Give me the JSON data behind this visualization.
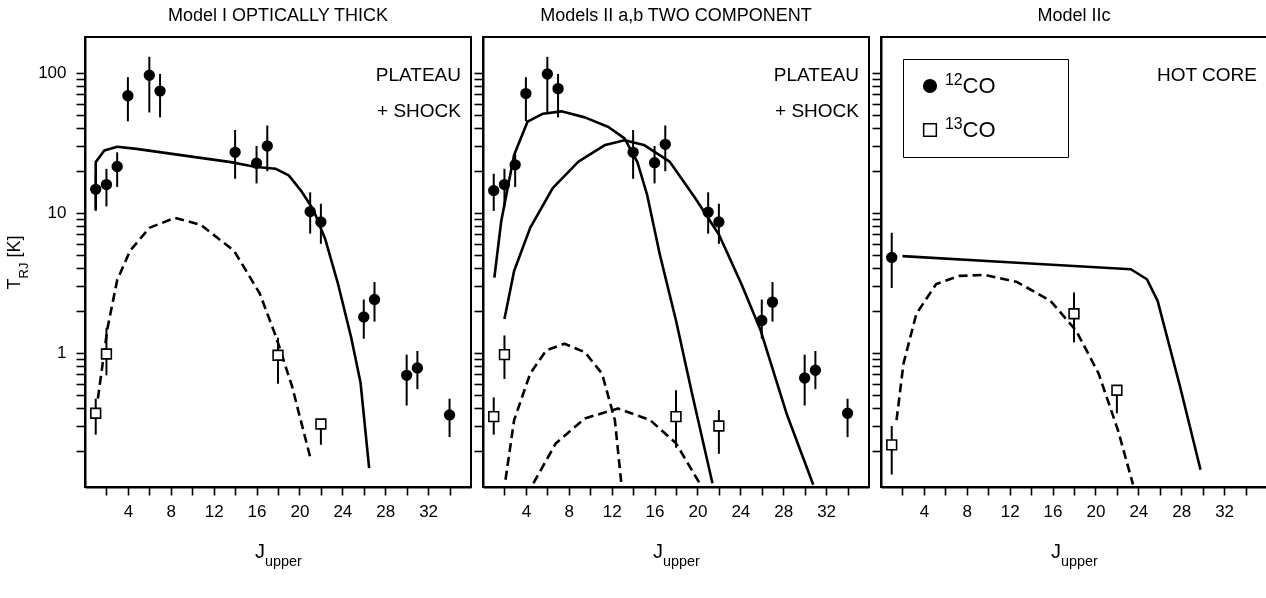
{
  "chart_data": [
    {
      "type": "scatter",
      "title": "Model I   OPTICALLY THICK",
      "xlabel": "J$_{upper}$",
      "ylabel": "T$_{RJ}$ [K]",
      "log": "y",
      "legend": false,
      "annotations": [
        "PLATEAU",
        "+ SHOCK"
      ],
      "xlim": [
        0,
        36
      ],
      "xticks": [
        {
          "value": 2,
          "label": null
        },
        4,
        {
          "value": 6,
          "label": null
        },
        8,
        {
          "value": 10,
          "label": null
        },
        12,
        {
          "value": 14,
          "label": null
        },
        16,
        {
          "value": 18,
          "label": null
        },
        20,
        {
          "value": 22,
          "label": null
        },
        24,
        {
          "value": 26,
          "label": null
        },
        28,
        {
          "value": 30,
          "label": null
        },
        32,
        {
          "value": 34,
          "label": null
        }
      ],
      "ylim": [
        0.11,
        180
      ],
      "yticks": [
        {
          "value": 0.2,
          "label": null
        },
        {
          "value": 0.3,
          "label": null
        },
        {
          "value": 0.4,
          "label": null
        },
        {
          "value": 0.5,
          "label": null
        },
        {
          "value": 0.6,
          "label": null
        },
        {
          "value": 0.7,
          "label": null
        },
        {
          "value": 0.8,
          "label": null
        },
        {
          "value": 0.9,
          "label": null
        },
        1,
        {
          "value": 2,
          "label": null
        },
        {
          "value": 3,
          "label": null
        },
        {
          "value": 4,
          "label": null
        },
        {
          "value": 5,
          "label": null
        },
        {
          "value": 6,
          "label": null
        },
        {
          "value": 7,
          "label": null
        },
        {
          "value": 8,
          "label": null
        },
        {
          "value": 9,
          "label": null
        },
        10,
        {
          "value": 20,
          "label": null
        },
        {
          "value": 30,
          "label": null
        },
        {
          "value": 40,
          "label": null
        },
        {
          "value": 50,
          "label": null
        },
        {
          "value": 60,
          "label": null
        },
        {
          "value": 70,
          "label": null
        },
        {
          "value": 80,
          "label": null
        },
        {
          "value": 90,
          "label": null
        },
        100
      ],
      "series": [
        {
          "type": "line",
          "color": "#000000",
          "line_style": "solid",
          "x": [
            1,
            1,
            1.8,
            3,
            4.8,
            13.6,
            16,
            17.8,
            19,
            20.2,
            21.3,
            22.4,
            23.6,
            24.8,
            25.7,
            26.5
          ],
          "values": [
            10.5,
            23,
            27.8,
            29.6,
            28.6,
            23,
            21.2,
            20.6,
            18.5,
            14.2,
            10.5,
            6.5,
            3.1,
            1.31,
            0.61,
            0.15
          ]
        },
        {
          "type": "line",
          "color": "#000000",
          "line_style": "dashed",
          "x": [
            1.2,
            2.1,
            3,
            4.2,
            6,
            8.4,
            10.8,
            13.9,
            16.3,
            17.8,
            19.3,
            21
          ],
          "values": [
            0.47,
            1.5,
            3.3,
            5.35,
            7.8,
            9.2,
            8.2,
            5.35,
            2.65,
            1.31,
            0.58,
            0.18
          ]
        },
        {
          "type": "scatter",
          "color": "#000000",
          "marker": "circle",
          "x": [
            1,
            2,
            3,
            4,
            6,
            7,
            14,
            16,
            17,
            21,
            22,
            26,
            27,
            30,
            31,
            34
          ],
          "values": [
            14.7,
            15.9,
            21.4,
            68.5,
            96,
            74,
            27,
            22.6,
            30,
            10.2,
            8.6,
            1.8,
            2.4,
            0.69,
            0.78,
            0.36
          ],
          "errors": [
            [
              10.3,
              19
            ],
            [
              11.1,
              20.6
            ],
            [
              15.3,
              27
            ],
            [
              45,
              93
            ],
            [
              52,
              130
            ],
            [
              48,
              98
            ],
            [
              17.5,
              39
            ],
            [
              16.2,
              30
            ],
            [
              19.8,
              42
            ],
            [
              7.1,
              14
            ],
            [
              6.0,
              11.6
            ],
            [
              1.26,
              2.4
            ],
            [
              1.67,
              3.2
            ],
            [
              0.42,
              0.97
            ],
            [
              0.55,
              1.03
            ],
            [
              0.25,
              0.47
            ]
          ]
        },
        {
          "type": "scatter",
          "color": "#000000",
          "marker": "square",
          "x": [
            1,
            2,
            18,
            22
          ],
          "values": [
            0.37,
            0.98,
            0.96,
            0.31
          ],
          "errors": [
            [
              0.26,
              0.47
            ],
            [
              0.69,
              1.5
            ],
            [
              0.6,
              1.28
            ],
            [
              0.22,
              0.31
            ]
          ]
        }
      ]
    },
    {
      "type": "scatter",
      "title": "Models II a,b   TWO COMPONENT",
      "xlabel": "J$_{upper}$",
      "log": "y",
      "legend": false,
      "tick_labels": "x",
      "annotations": [
        "PLATEAU",
        "+ SHOCK"
      ],
      "xlim": [
        0,
        36
      ],
      "xticks": [
        {
          "value": 2,
          "label": null
        },
        4,
        {
          "value": 6,
          "label": null
        },
        8,
        {
          "value": 10,
          "label": null
        },
        12,
        {
          "value": 14,
          "label": null
        },
        16,
        {
          "value": 18,
          "label": null
        },
        20,
        {
          "value": 22,
          "label": null
        },
        24,
        {
          "value": 26,
          "label": null
        },
        28,
        {
          "value": 30,
          "label": null
        },
        32,
        {
          "value": 34,
          "label": null
        }
      ],
      "ylim": [
        0.11,
        180
      ],
      "yticks": [
        {
          "value": 0.2,
          "label": null
        },
        {
          "value": 0.3,
          "label": null
        },
        {
          "value": 0.4,
          "label": null
        },
        {
          "value": 0.5,
          "label": null
        },
        {
          "value": 0.6,
          "label": null
        },
        {
          "value": 0.7,
          "label": null
        },
        {
          "value": 0.8,
          "label": null
        },
        {
          "value": 0.9,
          "label": null
        },
        1,
        {
          "value": 2,
          "label": null
        },
        {
          "value": 3,
          "label": null
        },
        {
          "value": 4,
          "label": null
        },
        {
          "value": 5,
          "label": null
        },
        {
          "value": 6,
          "label": null
        },
        {
          "value": 7,
          "label": null
        },
        {
          "value": 8,
          "label": null
        },
        {
          "value": 9,
          "label": null
        },
        10,
        {
          "value": 20,
          "label": null
        },
        {
          "value": 30,
          "label": null
        },
        {
          "value": 40,
          "label": null
        },
        {
          "value": 50,
          "label": null
        },
        {
          "value": 60,
          "label": null
        },
        {
          "value": 70,
          "label": null
        },
        {
          "value": 80,
          "label": null
        },
        {
          "value": 90,
          "label": null
        },
        100
      ],
      "series": [
        {
          "type": "line",
          "color": "#000000",
          "line_style": "solid",
          "x": [
            1.06,
            1.7,
            2.9,
            4.15,
            5.6,
            7.3,
            9.5,
            11.7,
            13.2,
            14.4,
            15.3,
            16.5,
            18,
            19.5,
            21.4
          ],
          "values": [
            3.44,
            8.7,
            25.9,
            44.7,
            51,
            53,
            48,
            41,
            34,
            23,
            13.5,
            5.0,
            1.7,
            0.51,
            0.117
          ]
        },
        {
          "type": "line",
          "color": "#000000",
          "line_style": "solid",
          "x": [
            2,
            2.9,
            4.4,
            6.5,
            8.9,
            11.4,
            13.2,
            15,
            17.4,
            19.8,
            22,
            24.1,
            25.9,
            28.3,
            30.8
          ],
          "values": [
            1.74,
            3.84,
            7.8,
            15,
            23.2,
            30.5,
            33,
            30.5,
            23.2,
            12.7,
            7.0,
            3.1,
            1.44,
            0.37,
            0.114
          ]
        },
        {
          "type": "line",
          "color": "#000000",
          "line_style": "dashed",
          "x": [
            2.1,
            2.9,
            4.4,
            5.9,
            7.6,
            9.5,
            11.1,
            12.3,
            12.9
          ],
          "values": [
            0.124,
            0.33,
            0.71,
            1.04,
            1.16,
            1.01,
            0.71,
            0.33,
            0.117
          ]
        },
        {
          "type": "line",
          "color": "#000000",
          "line_style": "dashed",
          "x": [
            4.7,
            6.8,
            9.5,
            12.6,
            15.6,
            18,
            20.2
          ],
          "values": [
            0.117,
            0.226,
            0.34,
            0.4,
            0.33,
            0.226,
            0.117
          ]
        },
        {
          "type": "scatter",
          "color": "#000000",
          "marker": "circle",
          "x": [
            1,
            2,
            3,
            4,
            6,
            7,
            14,
            16,
            17,
            21,
            22,
            26,
            27,
            30,
            31,
            34
          ],
          "values": [
            14.4,
            15.9,
            22,
            71,
            98,
            77,
            27,
            22.8,
            30.8,
            10.1,
            8.6,
            1.7,
            2.3,
            0.66,
            0.75,
            0.37
          ],
          "errors": [
            [
              10.3,
              19
            ],
            [
              11.1,
              20.6
            ],
            [
              15.3,
              27
            ],
            [
              45,
              93
            ],
            [
              52,
              130
            ],
            [
              48,
              98
            ],
            [
              17.5,
              39
            ],
            [
              16.2,
              30
            ],
            [
              19.8,
              42
            ],
            [
              7.1,
              14
            ],
            [
              6.0,
              11.6
            ],
            [
              1.26,
              2.4
            ],
            [
              1.67,
              3.2
            ],
            [
              0.42,
              0.97
            ],
            [
              0.55,
              1.03
            ],
            [
              0.25,
              0.47
            ]
          ]
        },
        {
          "type": "scatter",
          "color": "#000000",
          "marker": "square",
          "x": [
            1,
            2,
            18,
            22
          ],
          "values": [
            0.35,
            0.97,
            0.35,
            0.3
          ],
          "errors": [
            [
              0.26,
              0.48
            ],
            [
              0.65,
              1.33
            ],
            [
              0.21,
              0.54
            ],
            [
              0.19,
              0.39
            ]
          ]
        }
      ]
    },
    {
      "type": "scatter",
      "title": "Model IIc",
      "xlabel": "J$_{upper}$",
      "log": "y",
      "legend": "top left",
      "tick_labels": "x",
      "annotations": [
        "HOT CORE"
      ],
      "xlim": [
        0,
        36
      ],
      "xticks": [
        {
          "value": 2,
          "label": null
        },
        4,
        {
          "value": 6,
          "label": null
        },
        8,
        {
          "value": 10,
          "label": null
        },
        12,
        {
          "value": 14,
          "label": null
        },
        16,
        {
          "value": 18,
          "label": null
        },
        20,
        {
          "value": 22,
          "label": null
        },
        24,
        {
          "value": 26,
          "label": null
        },
        28,
        {
          "value": 30,
          "label": null
        },
        32,
        {
          "value": 34,
          "label": null
        }
      ],
      "ylim": [
        0.11,
        180
      ],
      "yticks": [
        {
          "value": 0.2,
          "label": null
        },
        {
          "value": 0.3,
          "label": null
        },
        {
          "value": 0.4,
          "label": null
        },
        {
          "value": 0.5,
          "label": null
        },
        {
          "value": 0.6,
          "label": null
        },
        {
          "value": 0.7,
          "label": null
        },
        {
          "value": 0.8,
          "label": null
        },
        {
          "value": 0.9,
          "label": null
        },
        1,
        {
          "value": 2,
          "label": null
        },
        {
          "value": 3,
          "label": null
        },
        {
          "value": 4,
          "label": null
        },
        {
          "value": 5,
          "label": null
        },
        {
          "value": 6,
          "label": null
        },
        {
          "value": 7,
          "label": null
        },
        {
          "value": 8,
          "label": null
        },
        {
          "value": 9,
          "label": null
        },
        10,
        {
          "value": 20,
          "label": null
        },
        {
          "value": 30,
          "label": null
        },
        {
          "value": 40,
          "label": null
        },
        {
          "value": 50,
          "label": null
        },
        {
          "value": 60,
          "label": null
        },
        {
          "value": 70,
          "label": null
        },
        {
          "value": 80,
          "label": null
        },
        {
          "value": 90,
          "label": null
        },
        100
      ],
      "series": [
        {
          "type": "line",
          "color": "#000000",
          "line_style": "solid",
          "x": [
            2,
            12.7,
            23.3,
            24.8,
            25.8,
            27.9,
            29.8
          ],
          "values": [
            4.9,
            4.4,
            3.95,
            3.35,
            2.35,
            0.57,
            0.146
          ]
        },
        {
          "type": "line",
          "color": "#000000",
          "line_style": "dashed",
          "x": [
            1.45,
            2.1,
            3.3,
            5.15,
            7.3,
            9.7,
            12.7,
            15.8,
            18.2,
            20.3,
            22.1,
            23.5
          ],
          "values": [
            0.33,
            0.84,
            1.9,
            3.1,
            3.54,
            3.6,
            3.2,
            2.35,
            1.44,
            0.71,
            0.28,
            0.115
          ]
        },
        {
          "type": "scatter",
          "name": "$^{12}$CO",
          "color": "#000000",
          "marker": "circle",
          "x": [
            1
          ],
          "values": [
            4.8
          ],
          "errors": [
            [
              2.9,
              7.2
            ]
          ]
        },
        {
          "type": "scatter",
          "name": "$^{13}$CO",
          "color": "#000000",
          "marker": "square",
          "x": [
            1,
            18,
            22
          ],
          "values": [
            0.22,
            1.9,
            0.54
          ],
          "errors": [
            [
              0.135,
              0.3
            ],
            [
              1.19,
              2.7
            ],
            [
              0.37,
              0.54
            ]
          ]
        }
      ]
    }
  ]
}
